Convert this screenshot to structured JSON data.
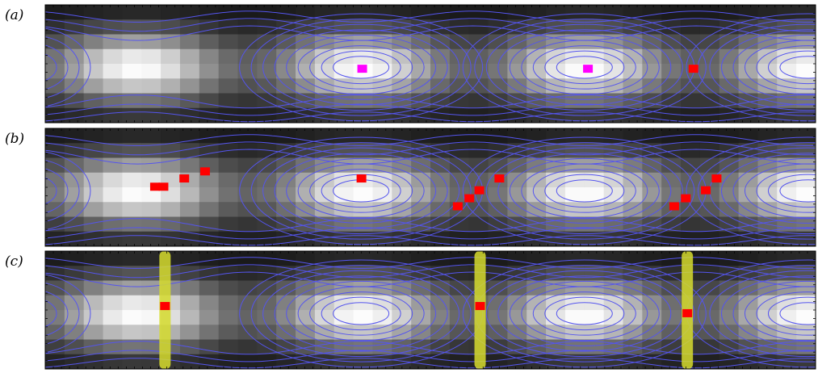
{
  "panels": [
    {
      "label": "(a)",
      "markers": [
        {
          "col": 0.4115,
          "row": 0.542,
          "color": "#ff00ff"
        },
        {
          "col": 0.7045,
          "row": 0.542,
          "color": "#ff00ff"
        },
        {
          "col": 0.8415,
          "row": 0.542,
          "color": "#ff0000"
        }
      ],
      "bands": []
    },
    {
      "label": "(b)",
      "markers": [
        {
          "col": 0.1425,
          "row": 0.495,
          "color": "#ff0000"
        },
        {
          "col": 0.1535,
          "row": 0.495,
          "color": "#ff0000"
        },
        {
          "col": 0.1805,
          "row": 0.425,
          "color": "#ff0000"
        },
        {
          "col": 0.2075,
          "row": 0.365,
          "color": "#ff0000"
        },
        {
          "col": 0.4105,
          "row": 0.425,
          "color": "#ff0000"
        },
        {
          "col": 0.5355,
          "row": 0.661,
          "color": "#ff0000"
        },
        {
          "col": 0.5505,
          "row": 0.593,
          "color": "#ff0000"
        },
        {
          "col": 0.5635,
          "row": 0.525,
          "color": "#ff0000"
        },
        {
          "col": 0.5895,
          "row": 0.425,
          "color": "#ff0000"
        },
        {
          "col": 0.8165,
          "row": 0.661,
          "color": "#ff0000"
        },
        {
          "col": 0.8315,
          "row": 0.593,
          "color": "#ff0000"
        },
        {
          "col": 0.8575,
          "row": 0.525,
          "color": "#ff0000"
        },
        {
          "col": 0.8715,
          "row": 0.425,
          "color": "#ff0000"
        }
      ],
      "bands": []
    },
    {
      "label": "(c)",
      "markers": [
        {
          "col": 0.1555,
          "row": 0.466,
          "color": "#ff0000"
        },
        {
          "col": 0.5645,
          "row": 0.466,
          "color": "#ff0000"
        },
        {
          "col": 0.8335,
          "row": 0.527,
          "color": "#ff0000"
        }
      ],
      "bands": [
        {
          "col": 0.1555
        },
        {
          "col": 0.5645
        },
        {
          "col": 0.8335
        }
      ]
    }
  ],
  "colors": {
    "contour": "#5555ee",
    "band": "#d6dc2e",
    "magenta_marker": "#ff00ff",
    "red_marker": "#ff0000"
  }
}
